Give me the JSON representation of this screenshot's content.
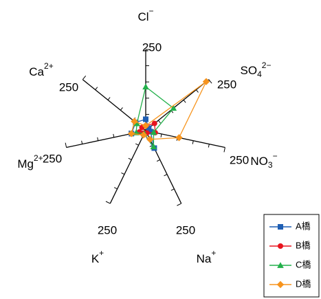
{
  "chart_data": {
    "type": "radar",
    "axes": [
      {
        "ion": "Cl",
        "sup": "−",
        "sub": "",
        "max": 250
      },
      {
        "ion": "SO",
        "sub": "4",
        "sup": "2−",
        "max": 250
      },
      {
        "ion": "NO",
        "sub": "3",
        "sup": "−",
        "max": 250
      },
      {
        "ion": "Na",
        "sup": "+",
        "sub": "",
        "max": 250
      },
      {
        "ion": "K",
        "sup": "+",
        "sub": "",
        "max": 250
      },
      {
        "ion": "Mg",
        "sup": "2+",
        "sub": "",
        "max": 250
      },
      {
        "ion": "Ca",
        "sup": "2+",
        "sub": "",
        "max": 250
      }
    ],
    "max_label": "250",
    "tick_count": 5,
    "series": [
      {
        "name": "A橋",
        "color": "#1f5fb4",
        "marker": "square",
        "values": [
          35,
          12,
          15,
          60,
          12,
          45,
          40
        ]
      },
      {
        "name": "B橋",
        "color": "#e8141e",
        "marker": "circle",
        "values": [
          15,
          35,
          30,
          8,
          8,
          20,
          15
        ]
      },
      {
        "name": "C橋",
        "color": "#22b04a",
        "marker": "triangle",
        "values": [
          135,
          110,
          25,
          55,
          10,
          30,
          35
        ]
      },
      {
        "name": "D橋",
        "color": "#f7941d",
        "marker": "diamond",
        "values": [
          15,
          240,
          105,
          30,
          15,
          45,
          45
        ]
      }
    ],
    "legend_position": "bottom-right"
  }
}
